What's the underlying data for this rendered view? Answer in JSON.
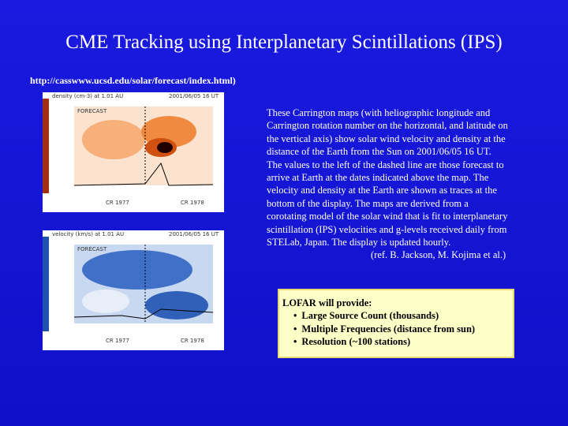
{
  "title": "CME Tracking using Interplanetary Scintillations (IPS)",
  "url": "http://casswww.ucsd.edu/solar/forecast/index.html)",
  "maps": [
    {
      "label": "density (cm-3) at 1.01 AU",
      "time": "2001/06/05 16 UT",
      "forecast": "FORECAST",
      "rotations": [
        "CR 1977",
        "CR 1978"
      ]
    },
    {
      "label": "velocity (km/s) at 1.01 AU",
      "time": "2001/06/05 16 UT",
      "forecast": "FORECAST",
      "rotations": [
        "CR 1977",
        "CR 1978"
      ]
    }
  ],
  "description": [
    "These Carrington maps (with heliographic longitude and",
    "Carrington rotation number on the horizontal, and latitude on",
    "the vertical axis) show solar wind velocity and density at the",
    "distance of the Earth from the Sun on 2001/06/05 16 UT.",
    "The values to the left of the dashed line are those forecast to",
    "arrive at Earth at the dates indicated above the map. The",
    "velocity and density at the Earth are shown as traces at the",
    "bottom of the display. The maps are derived from a",
    "corotating model of the solar wind that is fit to interplanetary",
    "scintillation (IPS) velocities and g-levels received daily from",
    "STELab, Japan. The display is updated hourly."
  ],
  "reference": "(ref. B. Jackson, M. Kojima et al.)",
  "lofar": {
    "heading": "LOFAR will provide:",
    "items": [
      "Large Source Count (thousands)",
      "Multiple Frequencies (distance from sun)",
      "Resolution (~100 stations)"
    ]
  }
}
